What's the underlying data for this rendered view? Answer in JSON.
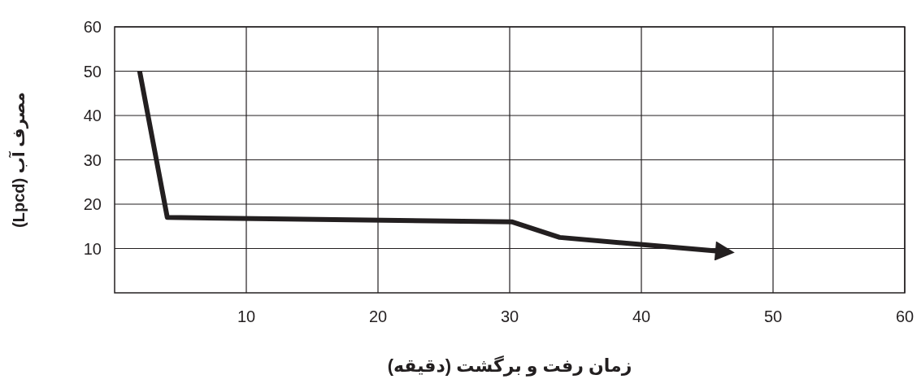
{
  "chart_data": {
    "type": "line",
    "xlabel": "زمان رفت و برگشت (دقیقه)",
    "ylabel": "مصرف آب (Lpcd)",
    "x": [
      1.9,
      4,
      30.2,
      33.8,
      46.2
    ],
    "series": [
      {
        "color": "#231f20",
        "values": [
          50,
          17,
          16,
          12.5,
          9.3
        ]
      }
    ],
    "xlim": [
      0,
      60
    ],
    "ylim": [
      0,
      60
    ],
    "xticks": [
      10,
      20,
      30,
      40,
      50,
      60
    ],
    "yticks": [
      10,
      20,
      30,
      40,
      50,
      60
    ],
    "grid": true,
    "marker": "none",
    "line_style": "solid"
  }
}
